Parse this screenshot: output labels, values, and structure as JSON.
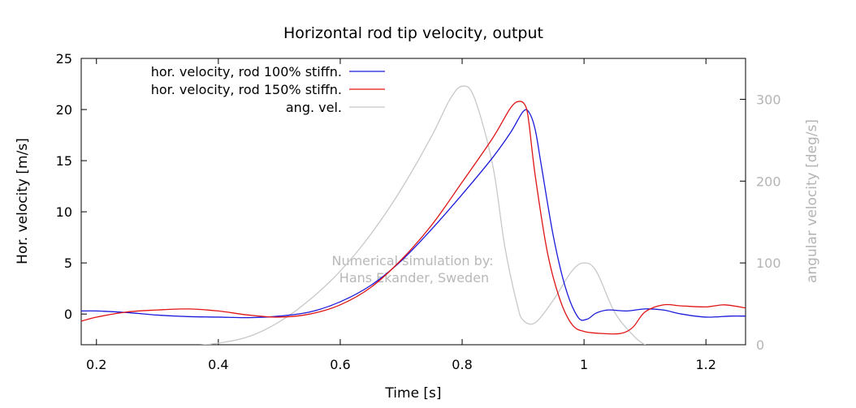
{
  "chart_data": {
    "type": "line",
    "title": "Horizontal rod tip velocity, output",
    "xlabel": "Time [s]",
    "ylabel": "Hor. velocity [m/s]",
    "y2label": "angular velocity [deg/s]",
    "xlim": [
      0.175,
      1.265
    ],
    "ylim": [
      -3,
      25
    ],
    "y2lim": [
      0,
      350
    ],
    "x_ticks": [
      0.2,
      0.4,
      0.6,
      0.8,
      1.0,
      1.2
    ],
    "x_tick_labels": [
      "0.2",
      "0.4",
      "0.6",
      "0.8",
      "1",
      "1.2"
    ],
    "y_ticks": [
      0,
      5,
      10,
      15,
      20,
      25
    ],
    "y_tick_labels": [
      "0",
      "5",
      "10",
      "15",
      "20",
      "25"
    ],
    "y2_ticks": [
      0,
      100,
      200,
      300
    ],
    "y2_tick_labels": [
      "0",
      "100",
      "200",
      "300"
    ],
    "grid": false,
    "legend_position": "top-left",
    "annotation": [
      "Numerical simulation by:",
      "Hans Ekander, Sweden"
    ],
    "series": [
      {
        "name": "hor. velocity, rod 100% stiffn.",
        "color": "#1a1adc",
        "axis": "left",
        "points": [
          [
            0.175,
            0.3
          ],
          [
            0.2,
            0.3
          ],
          [
            0.25,
            0.15
          ],
          [
            0.3,
            -0.1
          ],
          [
            0.35,
            -0.25
          ],
          [
            0.4,
            -0.3
          ],
          [
            0.45,
            -0.35
          ],
          [
            0.5,
            -0.2
          ],
          [
            0.55,
            0.2
          ],
          [
            0.6,
            1.2
          ],
          [
            0.65,
            2.8
          ],
          [
            0.7,
            5.2
          ],
          [
            0.75,
            8.3
          ],
          [
            0.8,
            11.7
          ],
          [
            0.85,
            15.3
          ],
          [
            0.88,
            17.8
          ],
          [
            0.9,
            19.8
          ],
          [
            0.91,
            19.7
          ],
          [
            0.92,
            18.0
          ],
          [
            0.93,
            14.5
          ],
          [
            0.95,
            7.5
          ],
          [
            0.97,
            2.5
          ],
          [
            0.99,
            -0.3
          ],
          [
            1.005,
            -0.5
          ],
          [
            1.02,
            0.1
          ],
          [
            1.04,
            0.4
          ],
          [
            1.07,
            0.3
          ],
          [
            1.1,
            0.5
          ],
          [
            1.13,
            0.4
          ],
          [
            1.16,
            0.0
          ],
          [
            1.2,
            -0.3
          ],
          [
            1.24,
            -0.2
          ],
          [
            1.265,
            -0.2
          ]
        ]
      },
      {
        "name": "hor. velocity, rod 150% stiffn.",
        "color": "#e01414",
        "axis": "left",
        "points": [
          [
            0.175,
            -0.7
          ],
          [
            0.2,
            -0.3
          ],
          [
            0.25,
            0.2
          ],
          [
            0.3,
            0.4
          ],
          [
            0.35,
            0.5
          ],
          [
            0.4,
            0.3
          ],
          [
            0.45,
            -0.1
          ],
          [
            0.5,
            -0.3
          ],
          [
            0.55,
            0.0
          ],
          [
            0.6,
            0.9
          ],
          [
            0.65,
            2.6
          ],
          [
            0.7,
            5.3
          ],
          [
            0.75,
            8.7
          ],
          [
            0.8,
            12.9
          ],
          [
            0.85,
            17.2
          ],
          [
            0.88,
            20.2
          ],
          [
            0.895,
            20.8
          ],
          [
            0.905,
            20.2
          ],
          [
            0.91,
            18.5
          ],
          [
            0.92,
            13.5
          ],
          [
            0.94,
            6.0
          ],
          [
            0.96,
            1.5
          ],
          [
            0.98,
            -1.0
          ],
          [
            1.0,
            -1.7
          ],
          [
            1.03,
            -1.9
          ],
          [
            1.06,
            -1.9
          ],
          [
            1.08,
            -1.3
          ],
          [
            1.1,
            0.2
          ],
          [
            1.13,
            0.9
          ],
          [
            1.16,
            0.8
          ],
          [
            1.2,
            0.7
          ],
          [
            1.23,
            0.9
          ],
          [
            1.265,
            0.6
          ]
        ]
      },
      {
        "name": "ang. vel.",
        "color": "#c8c8c8",
        "axis": "right",
        "points": [
          [
            0.35,
            -2
          ],
          [
            0.4,
            2
          ],
          [
            0.45,
            10
          ],
          [
            0.5,
            28
          ],
          [
            0.55,
            55
          ],
          [
            0.6,
            90
          ],
          [
            0.65,
            135
          ],
          [
            0.7,
            190
          ],
          [
            0.75,
            255
          ],
          [
            0.78,
            300
          ],
          [
            0.8,
            316
          ],
          [
            0.82,
            302
          ],
          [
            0.85,
            220
          ],
          [
            0.87,
            120
          ],
          [
            0.89,
            50
          ],
          [
            0.9,
            30
          ],
          [
            0.92,
            27
          ],
          [
            0.95,
            55
          ],
          [
            0.98,
            90
          ],
          [
            1.0,
            100
          ],
          [
            1.02,
            90
          ],
          [
            1.05,
            40
          ],
          [
            1.08,
            12
          ],
          [
            1.1,
            0
          ],
          [
            1.13,
            -10
          ]
        ]
      }
    ]
  }
}
